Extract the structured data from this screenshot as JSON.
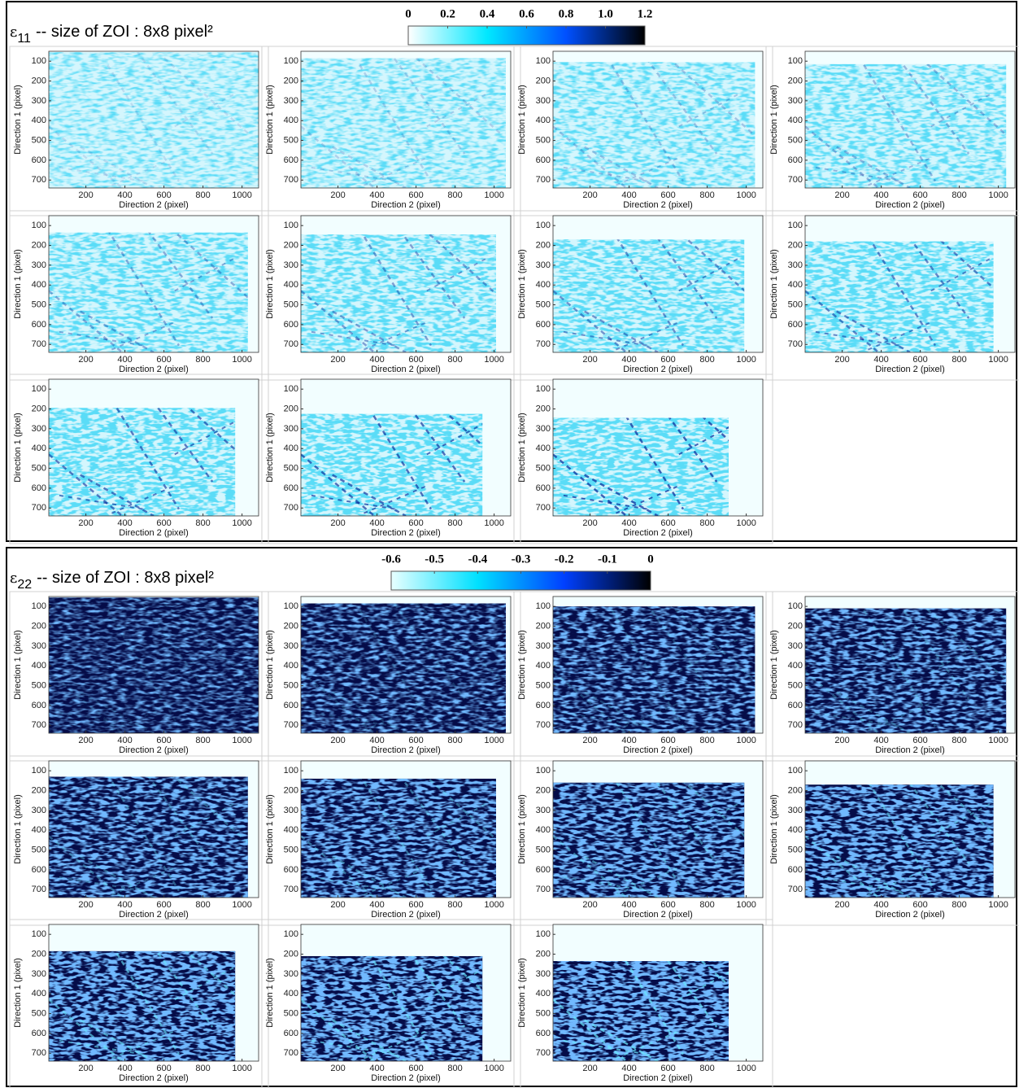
{
  "axes": {
    "xlabel": "Direction 2 (pixel)",
    "ylabel": "Direction 1 (pixel)",
    "xlim": [
      10,
      1085
    ],
    "ylim": [
      50,
      740
    ],
    "y_reversed": true,
    "xticks": [
      200,
      400,
      600,
      800,
      1000
    ],
    "yticks": [
      100,
      200,
      300,
      400,
      500,
      600,
      700
    ]
  },
  "panels": [
    {
      "symbol": "ε",
      "subscript": "11",
      "title": "-- size of ZOI : 8x8 pixel²",
      "clim": [
        0,
        1.2
      ],
      "cticks": [
        0,
        0.2,
        0.4,
        0.6,
        0.8,
        {
          "value": 1,
          "label": "1.0"
        },
        1.2
      ],
      "colormap": [
        "#ffffff",
        "#00e8ff",
        "#0050ff",
        "#000000"
      ],
      "fill": "#d4f6fd",
      "noise": "#1ab6ee",
      "band": "#0a2a9a",
      "regions": [
        {
          "top": 55,
          "right": 1085
        },
        {
          "top": 85,
          "right": 1060
        },
        {
          "top": 105,
          "right": 1045
        },
        {
          "top": 115,
          "right": 1040
        },
        {
          "top": 135,
          "right": 1030
        },
        {
          "top": 145,
          "right": 1010
        },
        {
          "top": 170,
          "right": 990
        },
        {
          "top": 180,
          "right": 975
        },
        {
          "top": 195,
          "right": 965
        },
        {
          "top": 225,
          "right": 940
        },
        {
          "top": 245,
          "right": 910
        }
      ]
    },
    {
      "symbol": "ε",
      "subscript": "22",
      "title": "-- size of ZOI : 8x8 pixel²",
      "clim": [
        -0.6,
        0
      ],
      "cticks": [
        -0.6,
        -0.5,
        -0.4,
        -0.3,
        -0.2,
        -0.1,
        0
      ],
      "colormap": [
        "#e8ffff",
        "#00e0ff",
        "#0040ff",
        "#000000"
      ],
      "fill": "#050c48",
      "noise": "#2a7cff",
      "band": "#6ae8ff",
      "regions": [
        {
          "top": 55,
          "right": 1085
        },
        {
          "top": 85,
          "right": 1060
        },
        {
          "top": 100,
          "right": 1045
        },
        {
          "top": 110,
          "right": 1040
        },
        {
          "top": 130,
          "right": 1030
        },
        {
          "top": 140,
          "right": 1010
        },
        {
          "top": 160,
          "right": 990
        },
        {
          "top": 170,
          "right": 975
        },
        {
          "top": 185,
          "right": 965
        },
        {
          "top": 210,
          "right": 940
        },
        {
          "top": 235,
          "right": 910
        }
      ]
    }
  ]
}
